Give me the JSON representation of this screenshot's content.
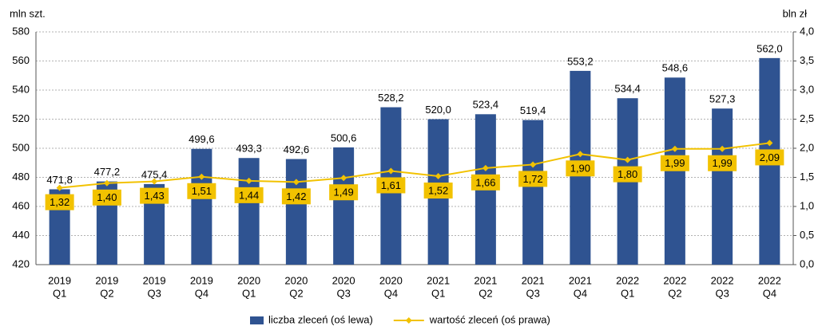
{
  "chart_data": {
    "type": "bar",
    "y_label": "mln szt.",
    "y2_label": "bln zł",
    "categories": [
      [
        "2019",
        "Q1"
      ],
      [
        "2019",
        "Q2"
      ],
      [
        "2019",
        "Q3"
      ],
      [
        "2019",
        "Q4"
      ],
      [
        "2020",
        "Q1"
      ],
      [
        "2020",
        "Q2"
      ],
      [
        "2020",
        "Q3"
      ],
      [
        "2020",
        "Q4"
      ],
      [
        "2021",
        "Q1"
      ],
      [
        "2021",
        "Q2"
      ],
      [
        "2021",
        "Q3"
      ],
      [
        "2021",
        "Q4"
      ],
      [
        "2022",
        "Q1"
      ],
      [
        "2022",
        "Q2"
      ],
      [
        "2022",
        "Q3"
      ],
      [
        "2022",
        "Q4"
      ]
    ],
    "series": [
      {
        "name": "liczba zleceń (oś lewa)",
        "type": "bar",
        "color": "#2f5391",
        "values": [
          471.8,
          477.2,
          475.4,
          499.6,
          493.3,
          492.6,
          500.6,
          528.2,
          520.0,
          523.4,
          519.4,
          553.2,
          534.4,
          548.6,
          527.3,
          562.0
        ],
        "value_labels": [
          "471,8",
          "477,2",
          "475,4",
          "499,6",
          "493,3",
          "492,6",
          "500,6",
          "528,2",
          "520,0",
          "523,4",
          "519,4",
          "553,2",
          "534,4",
          "548,6",
          "527,3",
          "562,0"
        ]
      },
      {
        "name": "wartość zleceń (oś prawa)",
        "type": "line",
        "axis": "y2",
        "color": "#f2c200",
        "values": [
          1.32,
          1.4,
          1.43,
          1.51,
          1.44,
          1.42,
          1.49,
          1.61,
          1.52,
          1.66,
          1.72,
          1.9,
          1.8,
          1.99,
          1.99,
          2.09
        ],
        "value_labels": [
          "1,32",
          "1,40",
          "1,43",
          "1,51",
          "1,44",
          "1,42",
          "1,49",
          "1,61",
          "1,52",
          "1,66",
          "1,72",
          "1,90",
          "1,80",
          "1,99",
          "1,99",
          "2,09"
        ]
      }
    ],
    "ylim": [
      420,
      580
    ],
    "yticks": [
      420,
      440,
      460,
      480,
      500,
      520,
      540,
      560,
      580
    ],
    "y2lim": [
      0,
      4
    ],
    "y2ticks": [
      {
        "value": 0,
        "label": "0,0"
      },
      {
        "value": 0.5,
        "label": "0,5"
      },
      {
        "value": 1,
        "label": "1,0"
      },
      {
        "value": 1.5,
        "label": "1,5"
      },
      {
        "value": 2,
        "label": "2,0"
      },
      {
        "value": 2.5,
        "label": "2,5"
      },
      {
        "value": 3,
        "label": "3,0"
      },
      {
        "value": 3.5,
        "label": "3,5"
      },
      {
        "value": 4,
        "label": "4,0"
      }
    ],
    "grid": true,
    "legend": "bottom"
  }
}
